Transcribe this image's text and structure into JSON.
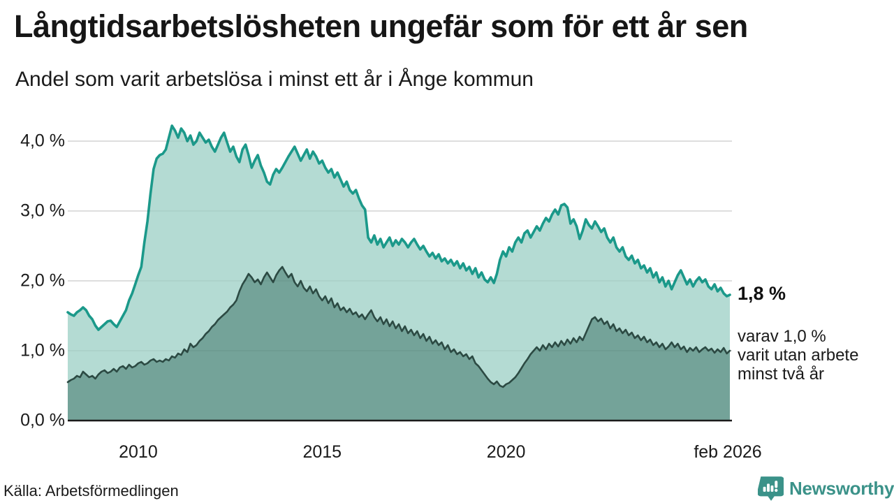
{
  "header": {
    "title": "Långtidsarbetslösheten ungefär som för ett år sen",
    "subtitle": "Andel som varit arbetslösa i minst ett år i Ånge kommun"
  },
  "source": {
    "text": "Källa: Arbetsförmedlingen"
  },
  "logo": {
    "text": "Newsworthy",
    "icon": "speech-bubble-bar-chart",
    "color": "#3b9289"
  },
  "chart_data": {
    "type": "area",
    "title": "Långtidsarbetslösheten ungefär som för ett år sen",
    "subtitle": "Andel som varit arbetslösa i minst ett år i Ånge kommun",
    "frequency": "monthly",
    "x_start": "2008-02",
    "x_end": "2026-02",
    "ylim": [
      0,
      4.45
    ],
    "grid": "horizontal",
    "legend_position": "none",
    "y_ticks": [
      {
        "label": "0,0 %",
        "value": 0
      },
      {
        "label": "1,0 %",
        "value": 1
      },
      {
        "label": "2,0 %",
        "value": 2
      },
      {
        "label": "3,0 %",
        "value": 3
      },
      {
        "label": "4,0 %",
        "value": 4
      }
    ],
    "x_ticks": [
      {
        "label": "2010",
        "month": 23
      },
      {
        "label": "2015",
        "month": 83
      },
      {
        "label": "2020",
        "month": 143
      },
      {
        "label": "feb 2026",
        "month": 216
      }
    ],
    "annotations": {
      "latest_label": "1,8 %",
      "note_lines": [
        "varav 1,0 %",
        "varit utan arbete",
        "minst två år"
      ]
    },
    "colors": {
      "line_total": "#1b998a",
      "fill_total": "#b4dbd3",
      "line_two_years": "#2c4a43",
      "fill_two_years": "#74a399",
      "gridline": "#e0e0e0",
      "axis": "#1a1a1a"
    },
    "series": [
      {
        "name": "Arbetslösa minst ett år",
        "latest_value": 1.8,
        "values": [
          1.55,
          1.52,
          1.5,
          1.55,
          1.58,
          1.62,
          1.58,
          1.5,
          1.45,
          1.36,
          1.3,
          1.34,
          1.38,
          1.42,
          1.43,
          1.38,
          1.34,
          1.42,
          1.5,
          1.58,
          1.72,
          1.82,
          1.95,
          2.08,
          2.2,
          2.55,
          2.85,
          3.25,
          3.6,
          3.75,
          3.8,
          3.82,
          3.88,
          4.05,
          4.22,
          4.15,
          4.05,
          4.18,
          4.12,
          4.0,
          4.08,
          3.95,
          4.0,
          4.12,
          4.05,
          3.98,
          4.02,
          3.92,
          3.85,
          3.95,
          4.05,
          4.12,
          3.98,
          3.85,
          3.92,
          3.78,
          3.7,
          3.88,
          3.95,
          3.8,
          3.62,
          3.72,
          3.8,
          3.65,
          3.55,
          3.42,
          3.38,
          3.52,
          3.6,
          3.55,
          3.62,
          3.7,
          3.78,
          3.85,
          3.92,
          3.82,
          3.72,
          3.8,
          3.88,
          3.75,
          3.85,
          3.78,
          3.68,
          3.72,
          3.62,
          3.55,
          3.6,
          3.48,
          3.55,
          3.45,
          3.35,
          3.42,
          3.3,
          3.25,
          3.3,
          3.18,
          3.08,
          3.02,
          2.62,
          2.55,
          2.65,
          2.52,
          2.6,
          2.48,
          2.55,
          2.62,
          2.5,
          2.58,
          2.52,
          2.6,
          2.55,
          2.48,
          2.55,
          2.6,
          2.52,
          2.45,
          2.5,
          2.42,
          2.35,
          2.4,
          2.32,
          2.38,
          2.28,
          2.32,
          2.25,
          2.3,
          2.22,
          2.28,
          2.18,
          2.25,
          2.15,
          2.2,
          2.1,
          2.18,
          2.05,
          2.12,
          2.02,
          1.98,
          2.05,
          1.97,
          2.1,
          2.3,
          2.42,
          2.35,
          2.48,
          2.42,
          2.55,
          2.62,
          2.55,
          2.68,
          2.72,
          2.62,
          2.7,
          2.78,
          2.72,
          2.82,
          2.9,
          2.85,
          2.95,
          3.02,
          2.95,
          3.08,
          3.1,
          3.05,
          2.82,
          2.88,
          2.78,
          2.6,
          2.72,
          2.88,
          2.8,
          2.75,
          2.85,
          2.78,
          2.7,
          2.75,
          2.62,
          2.55,
          2.62,
          2.48,
          2.42,
          2.48,
          2.35,
          2.3,
          2.36,
          2.25,
          2.3,
          2.18,
          2.22,
          2.12,
          2.18,
          2.05,
          2.12,
          1.98,
          2.05,
          1.92,
          2.0,
          1.88,
          1.98,
          2.08,
          2.15,
          2.05,
          1.95,
          2.02,
          1.92,
          2.0,
          2.05,
          1.98,
          2.02,
          1.92,
          1.88,
          1.95,
          1.85,
          1.9,
          1.82,
          1.78,
          1.8
        ]
      },
      {
        "name": "Arbetslösa minst två år",
        "latest_value": 1.0,
        "values": [
          0.55,
          0.58,
          0.6,
          0.64,
          0.62,
          0.7,
          0.66,
          0.62,
          0.64,
          0.6,
          0.66,
          0.7,
          0.72,
          0.68,
          0.7,
          0.74,
          0.7,
          0.76,
          0.78,
          0.74,
          0.8,
          0.76,
          0.78,
          0.82,
          0.84,
          0.8,
          0.82,
          0.86,
          0.88,
          0.84,
          0.86,
          0.84,
          0.88,
          0.86,
          0.92,
          0.9,
          0.96,
          0.94,
          1.02,
          0.98,
          1.1,
          1.05,
          1.08,
          1.14,
          1.18,
          1.24,
          1.28,
          1.34,
          1.38,
          1.44,
          1.48,
          1.52,
          1.56,
          1.62,
          1.66,
          1.72,
          1.85,
          1.95,
          2.02,
          2.1,
          2.05,
          1.98,
          2.02,
          1.95,
          2.05,
          2.12,
          2.05,
          1.98,
          2.08,
          2.15,
          2.2,
          2.12,
          2.05,
          2.1,
          1.98,
          1.92,
          2.0,
          1.9,
          1.85,
          1.92,
          1.82,
          1.88,
          1.78,
          1.72,
          1.78,
          1.68,
          1.75,
          1.62,
          1.68,
          1.58,
          1.62,
          1.55,
          1.6,
          1.52,
          1.55,
          1.48,
          1.52,
          1.45,
          1.52,
          1.58,
          1.48,
          1.42,
          1.48,
          1.38,
          1.45,
          1.35,
          1.42,
          1.32,
          1.38,
          1.28,
          1.35,
          1.25,
          1.3,
          1.22,
          1.28,
          1.18,
          1.24,
          1.14,
          1.2,
          1.1,
          1.15,
          1.08,
          1.12,
          1.02,
          1.08,
          0.98,
          1.02,
          0.95,
          0.98,
          0.92,
          0.95,
          0.88,
          0.92,
          0.82,
          0.78,
          0.72,
          0.66,
          0.6,
          0.55,
          0.52,
          0.56,
          0.5,
          0.48,
          0.52,
          0.54,
          0.58,
          0.62,
          0.68,
          0.75,
          0.82,
          0.88,
          0.95,
          1.0,
          1.05,
          1.0,
          1.08,
          1.02,
          1.1,
          1.05,
          1.12,
          1.06,
          1.14,
          1.08,
          1.16,
          1.1,
          1.18,
          1.12,
          1.2,
          1.15,
          1.25,
          1.35,
          1.45,
          1.48,
          1.42,
          1.46,
          1.38,
          1.42,
          1.32,
          1.38,
          1.28,
          1.32,
          1.25,
          1.3,
          1.22,
          1.26,
          1.18,
          1.22,
          1.15,
          1.2,
          1.12,
          1.16,
          1.08,
          1.12,
          1.05,
          1.1,
          1.02,
          1.06,
          1.12,
          1.05,
          1.1,
          1.02,
          1.06,
          0.98,
          1.04,
          1.0,
          1.05,
          0.98,
          1.02,
          1.05,
          1.0,
          1.03,
          0.97,
          1.02,
          0.98,
          1.04,
          0.96,
          1.0
        ]
      }
    ]
  }
}
